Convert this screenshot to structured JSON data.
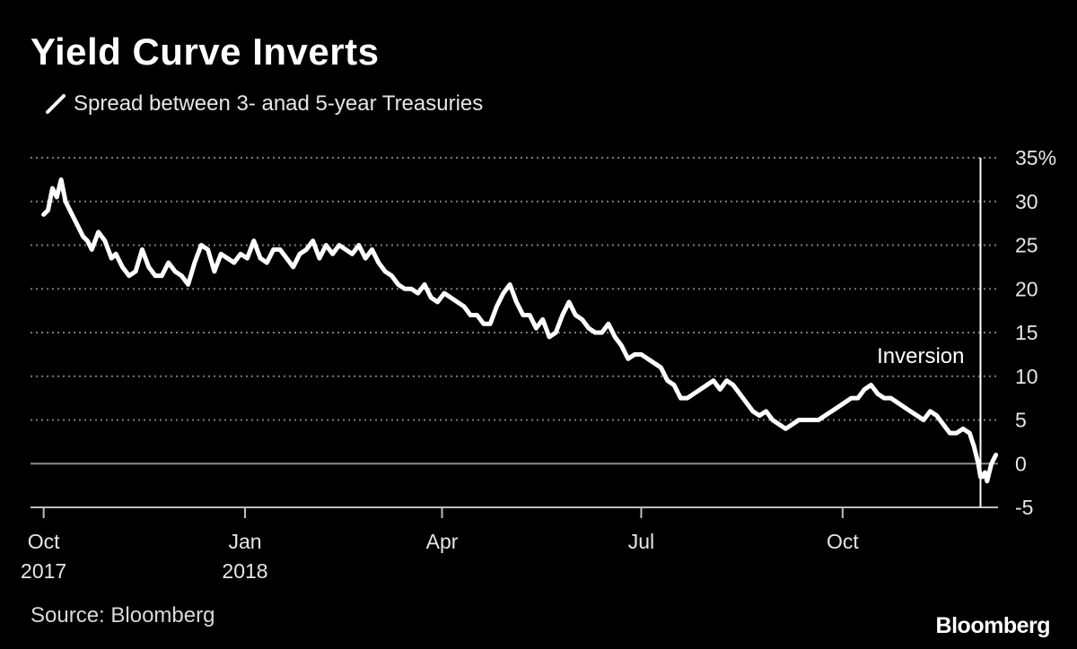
{
  "colors": {
    "background": "#000000",
    "line": "#ffffff",
    "grid": "#7a7a7a",
    "zero_line": "#8c8c8c",
    "text": "#e6e6e6"
  },
  "source": "Source: Bloomberg",
  "brand": "Bloomberg",
  "chart_data": {
    "type": "line",
    "title": "Yield Curve Inverts",
    "legend_position": "top-left",
    "grid": true,
    "y_unit_note": "%",
    "ylim": [
      -5,
      35
    ],
    "y_ticks": [
      {
        "value": 35,
        "label": "35%"
      },
      {
        "value": 30,
        "label": "30"
      },
      {
        "value": 25,
        "label": "25"
      },
      {
        "value": 20,
        "label": "20"
      },
      {
        "value": 15,
        "label": "15"
      },
      {
        "value": 10,
        "label": "10"
      },
      {
        "value": 5,
        "label": "5"
      },
      {
        "value": 0,
        "label": "0"
      },
      {
        "value": -5,
        "label": "-5"
      }
    ],
    "xlim": [
      "2017-09-25",
      "2018-12-11"
    ],
    "x_ticks": [
      {
        "date": "2017-10-01",
        "label": "Oct",
        "label2": "2017"
      },
      {
        "date": "2018-01-01",
        "label": "Jan",
        "label2": "2018"
      },
      {
        "date": "2018-04-01",
        "label": "Apr",
        "label2": ""
      },
      {
        "date": "2018-07-01",
        "label": "Jul",
        "label2": ""
      },
      {
        "date": "2018-10-01",
        "label": "Oct",
        "label2": ""
      }
    ],
    "annotations": [
      {
        "text": "Inversion",
        "date": "2018-12-03"
      }
    ],
    "series": [
      {
        "name": "Spread between 3- anad 5-year Treasuries",
        "color": "#ffffff",
        "points": [
          [
            "2017-10-01",
            28.5
          ],
          [
            "2017-10-03",
            29
          ],
          [
            "2017-10-05",
            31.5
          ],
          [
            "2017-10-07",
            30.5
          ],
          [
            "2017-10-09",
            32.5
          ],
          [
            "2017-10-11",
            30
          ],
          [
            "2017-10-14",
            28.5
          ],
          [
            "2017-10-17",
            27
          ],
          [
            "2017-10-19",
            26
          ],
          [
            "2017-10-21",
            25.5
          ],
          [
            "2017-10-23",
            24.5
          ],
          [
            "2017-10-26",
            26.5
          ],
          [
            "2017-10-29",
            25.5
          ],
          [
            "2017-11-01",
            23.5
          ],
          [
            "2017-11-03",
            24
          ],
          [
            "2017-11-06",
            22.5
          ],
          [
            "2017-11-09",
            21.5
          ],
          [
            "2017-11-12",
            22
          ],
          [
            "2017-11-15",
            24.5
          ],
          [
            "2017-11-18",
            22.5
          ],
          [
            "2017-11-21",
            21.5
          ],
          [
            "2017-11-24",
            21.5
          ],
          [
            "2017-11-27",
            23
          ],
          [
            "2017-11-30",
            22
          ],
          [
            "2017-12-03",
            21.5
          ],
          [
            "2017-12-06",
            20.5
          ],
          [
            "2017-12-09",
            23
          ],
          [
            "2017-12-12",
            25
          ],
          [
            "2017-12-15",
            24.5
          ],
          [
            "2017-12-18",
            22
          ],
          [
            "2017-12-21",
            24
          ],
          [
            "2017-12-24",
            23.5
          ],
          [
            "2017-12-27",
            23
          ],
          [
            "2017-12-30",
            24
          ],
          [
            "2018-01-02",
            23.5
          ],
          [
            "2018-01-05",
            25.5
          ],
          [
            "2018-01-08",
            23.5
          ],
          [
            "2018-01-11",
            23
          ],
          [
            "2018-01-14",
            24.5
          ],
          [
            "2018-01-17",
            24.5
          ],
          [
            "2018-01-20",
            23.5
          ],
          [
            "2018-01-23",
            22.5
          ],
          [
            "2018-01-26",
            24
          ],
          [
            "2018-01-29",
            24.5
          ],
          [
            "2018-02-01",
            25.5
          ],
          [
            "2018-02-04",
            23.5
          ],
          [
            "2018-02-07",
            25
          ],
          [
            "2018-02-10",
            24
          ],
          [
            "2018-02-13",
            25
          ],
          [
            "2018-02-16",
            24.5
          ],
          [
            "2018-02-19",
            24
          ],
          [
            "2018-02-22",
            25
          ],
          [
            "2018-02-25",
            23.5
          ],
          [
            "2018-02-28",
            24.5
          ],
          [
            "2018-03-03",
            23
          ],
          [
            "2018-03-06",
            22
          ],
          [
            "2018-03-09",
            21.5
          ],
          [
            "2018-03-12",
            20.5
          ],
          [
            "2018-03-15",
            20
          ],
          [
            "2018-03-18",
            20
          ],
          [
            "2018-03-21",
            19.5
          ],
          [
            "2018-03-24",
            20.5
          ],
          [
            "2018-03-27",
            19
          ],
          [
            "2018-03-30",
            18.5
          ],
          [
            "2018-04-02",
            19.5
          ],
          [
            "2018-04-05",
            19
          ],
          [
            "2018-04-08",
            18.5
          ],
          [
            "2018-04-11",
            18
          ],
          [
            "2018-04-14",
            17
          ],
          [
            "2018-04-17",
            17
          ],
          [
            "2018-04-20",
            16
          ],
          [
            "2018-04-23",
            16
          ],
          [
            "2018-04-26",
            18
          ],
          [
            "2018-04-29",
            19.5
          ],
          [
            "2018-05-02",
            20.5
          ],
          [
            "2018-05-05",
            18.5
          ],
          [
            "2018-05-08",
            17
          ],
          [
            "2018-05-11",
            17
          ],
          [
            "2018-05-14",
            15.5
          ],
          [
            "2018-05-17",
            16.5
          ],
          [
            "2018-05-20",
            14.5
          ],
          [
            "2018-05-23",
            15
          ],
          [
            "2018-05-26",
            17
          ],
          [
            "2018-05-29",
            18.5
          ],
          [
            "2018-06-01",
            17
          ],
          [
            "2018-06-04",
            16.5
          ],
          [
            "2018-06-07",
            15.5
          ],
          [
            "2018-06-10",
            15
          ],
          [
            "2018-06-13",
            15
          ],
          [
            "2018-06-16",
            16
          ],
          [
            "2018-06-19",
            14.5
          ],
          [
            "2018-06-22",
            13.5
          ],
          [
            "2018-06-25",
            12
          ],
          [
            "2018-06-28",
            12.5
          ],
          [
            "2018-07-01",
            12.5
          ],
          [
            "2018-07-04",
            12
          ],
          [
            "2018-07-07",
            11.5
          ],
          [
            "2018-07-10",
            11
          ],
          [
            "2018-07-13",
            9.5
          ],
          [
            "2018-07-16",
            9
          ],
          [
            "2018-07-19",
            7.5
          ],
          [
            "2018-07-22",
            7.5
          ],
          [
            "2018-07-25",
            8
          ],
          [
            "2018-07-28",
            8.5
          ],
          [
            "2018-07-31",
            9
          ],
          [
            "2018-08-03",
            9.5
          ],
          [
            "2018-08-06",
            8.5
          ],
          [
            "2018-08-09",
            9.5
          ],
          [
            "2018-08-12",
            9
          ],
          [
            "2018-08-15",
            8
          ],
          [
            "2018-08-18",
            7
          ],
          [
            "2018-08-21",
            6
          ],
          [
            "2018-08-24",
            5.5
          ],
          [
            "2018-08-27",
            6
          ],
          [
            "2018-08-30",
            5
          ],
          [
            "2018-09-02",
            4.5
          ],
          [
            "2018-09-05",
            4
          ],
          [
            "2018-09-08",
            4.5
          ],
          [
            "2018-09-11",
            5
          ],
          [
            "2018-09-14",
            5
          ],
          [
            "2018-09-17",
            5
          ],
          [
            "2018-09-20",
            5
          ],
          [
            "2018-09-23",
            5.5
          ],
          [
            "2018-09-26",
            6
          ],
          [
            "2018-09-29",
            6.5
          ],
          [
            "2018-10-02",
            7
          ],
          [
            "2018-10-05",
            7.5
          ],
          [
            "2018-10-08",
            7.5
          ],
          [
            "2018-10-11",
            8.5
          ],
          [
            "2018-10-14",
            9
          ],
          [
            "2018-10-17",
            8
          ],
          [
            "2018-10-20",
            7.5
          ],
          [
            "2018-10-23",
            7.5
          ],
          [
            "2018-10-26",
            7
          ],
          [
            "2018-10-29",
            6.5
          ],
          [
            "2018-11-01",
            6
          ],
          [
            "2018-11-04",
            5.5
          ],
          [
            "2018-11-07",
            5
          ],
          [
            "2018-11-10",
            6
          ],
          [
            "2018-11-13",
            5.5
          ],
          [
            "2018-11-16",
            4.5
          ],
          [
            "2018-11-19",
            3.5
          ],
          [
            "2018-11-22",
            3.5
          ],
          [
            "2018-11-25",
            4
          ],
          [
            "2018-11-28",
            3.5
          ],
          [
            "2018-11-30",
            2
          ],
          [
            "2018-12-02",
            0
          ],
          [
            "2018-12-03",
            -1.5
          ],
          [
            "2018-12-04",
            -1.5
          ],
          [
            "2018-12-05",
            -1
          ],
          [
            "2018-12-06",
            -2
          ],
          [
            "2018-12-07",
            -1
          ],
          [
            "2018-12-08",
            0
          ],
          [
            "2018-12-09",
            0.5
          ],
          [
            "2018-12-10",
            1
          ]
        ]
      }
    ]
  }
}
